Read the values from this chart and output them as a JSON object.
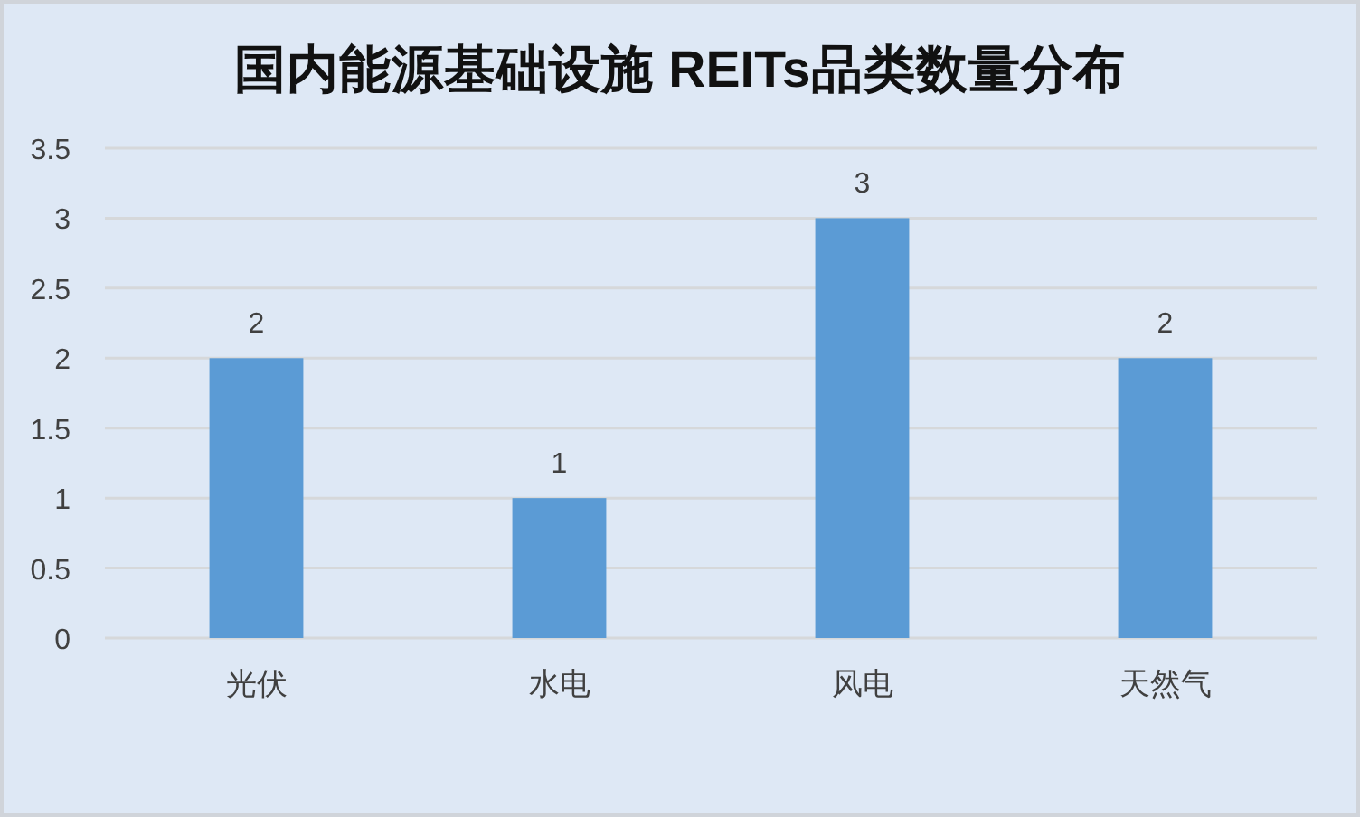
{
  "chart_data": {
    "type": "bar",
    "title": "国内能源基础设施 REITs品类数量分布",
    "categories": [
      "光伏",
      "水电",
      "风电",
      "天然气"
    ],
    "values": [
      2,
      1,
      3,
      2
    ],
    "color": "#5b9bd5",
    "ylim": [
      0,
      3.5
    ],
    "yticks": [
      0,
      0.5,
      1,
      1.5,
      2,
      2.5,
      3,
      3.5
    ],
    "grid": "y",
    "data_labels": true
  }
}
